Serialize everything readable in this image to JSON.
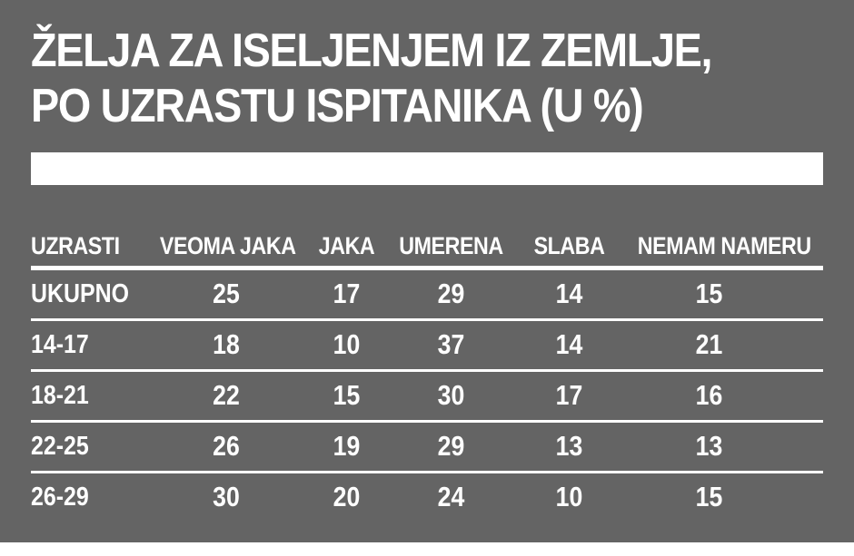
{
  "title": {
    "line1": "ŽELJA ZA ISELJENJEM IZ ZEMLJE,",
    "line2": "PO UZRASTU ISPITANIKA (U %)"
  },
  "colors": {
    "background": "#646464",
    "text": "#ffffff",
    "bar": "#ffffff"
  },
  "chart_data": {
    "type": "table",
    "title": "ŽELJA ZA ISELJENJEM IZ ZEMLJE, PO UZRASTU ISPITANIKA (U %)",
    "unit": "%",
    "columns": [
      "UZRASTI",
      "VEOMA JAKA",
      "JAKA",
      "UMERENA",
      "SLABA",
      "NEMAM NAMERU"
    ],
    "rows": [
      [
        "UKUPNO",
        25,
        17,
        29,
        14,
        15
      ],
      [
        "14-17",
        18,
        10,
        37,
        14,
        21
      ],
      [
        "18-21",
        22,
        15,
        30,
        17,
        16
      ],
      [
        "22-25",
        26,
        19,
        29,
        13,
        13
      ],
      [
        "26-29",
        30,
        20,
        24,
        10,
        15
      ]
    ]
  }
}
